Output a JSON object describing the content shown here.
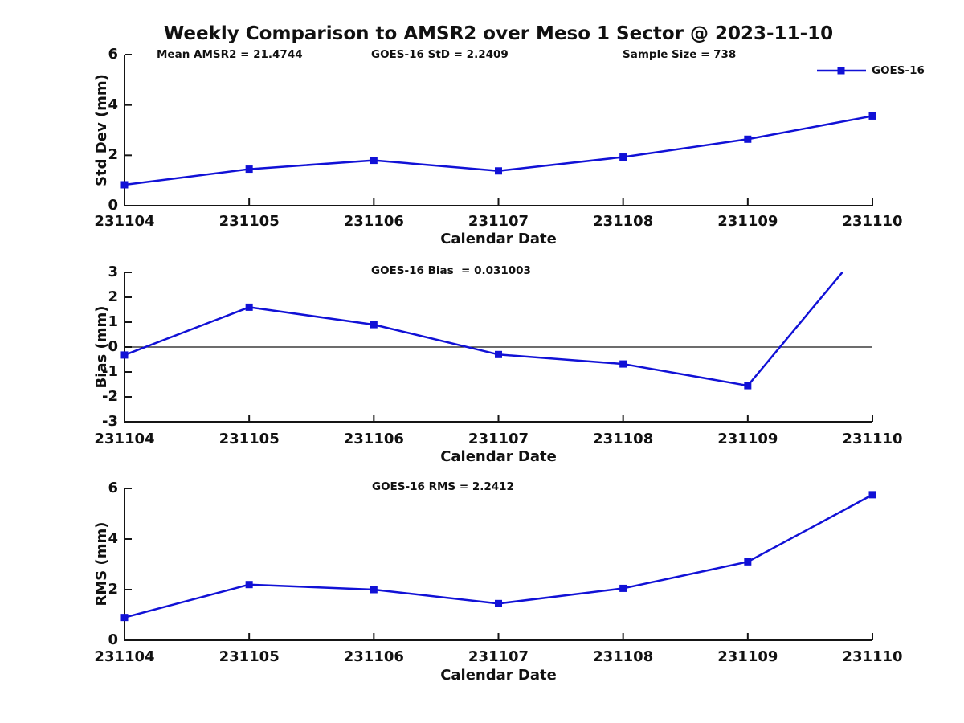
{
  "title": "Weekly Comparison to AMSR2 over Meso 1 Sector @ 2023-11-10",
  "colors": {
    "line": "#1111d6",
    "axis": "#151515",
    "text": "#111111",
    "background": "#ffffff"
  },
  "legend": {
    "label": "GOES-16",
    "position": "top-right",
    "marker": "filled-square"
  },
  "chart_data": [
    {
      "type": "line",
      "name": "std-dev",
      "ylabel": "Std Dev (mm)",
      "xlabel": "Calendar Date",
      "ylim": [
        0,
        6
      ],
      "yticks": [
        0,
        2,
        4,
        6
      ],
      "grid": false,
      "categories": [
        "231104",
        "231105",
        "231106",
        "231107",
        "231108",
        "231109",
        "231110"
      ],
      "series": [
        {
          "name": "GOES-16",
          "values": [
            0.83,
            1.45,
            1.8,
            1.38,
            1.93,
            2.64,
            3.56
          ]
        }
      ],
      "annotations": [
        "Mean AMSR2 = 21.4744",
        "GOES-16 StD = 2.2409",
        "Sample Size = 738"
      ],
      "legend": {
        "entries": [
          "GOES-16"
        ],
        "position": "top-right"
      }
    },
    {
      "type": "line",
      "name": "bias",
      "ylabel": "Bias (mm)",
      "xlabel": "Calendar Date",
      "ylim": [
        -3,
        3
      ],
      "yticks": [
        -3,
        -2,
        -1,
        0,
        1,
        2,
        3
      ],
      "zero_line": true,
      "clip_to_ylim": true,
      "grid": false,
      "categories": [
        "231104",
        "231105",
        "231106",
        "231107",
        "231108",
        "231109",
        "231110"
      ],
      "series": [
        {
          "name": "GOES-16",
          "values": [
            -0.32,
            1.6,
            0.9,
            -0.3,
            -0.68,
            -1.55,
            4.45
          ]
        }
      ],
      "annotations": [
        "GOES-16 Bias  = 0.031003"
      ]
    },
    {
      "type": "line",
      "name": "rms",
      "ylabel": "RMS (mm)",
      "xlabel": "Calendar Date",
      "ylim": [
        0,
        6
      ],
      "yticks": [
        0,
        2,
        4,
        6
      ],
      "grid": false,
      "categories": [
        "231104",
        "231105",
        "231106",
        "231107",
        "231108",
        "231109",
        "231110"
      ],
      "series": [
        {
          "name": "GOES-16",
          "values": [
            0.9,
            2.2,
            2.0,
            1.45,
            2.05,
            3.1,
            5.75
          ]
        }
      ],
      "annotations": [
        "GOES-16 RMS = 2.2412"
      ]
    }
  ]
}
